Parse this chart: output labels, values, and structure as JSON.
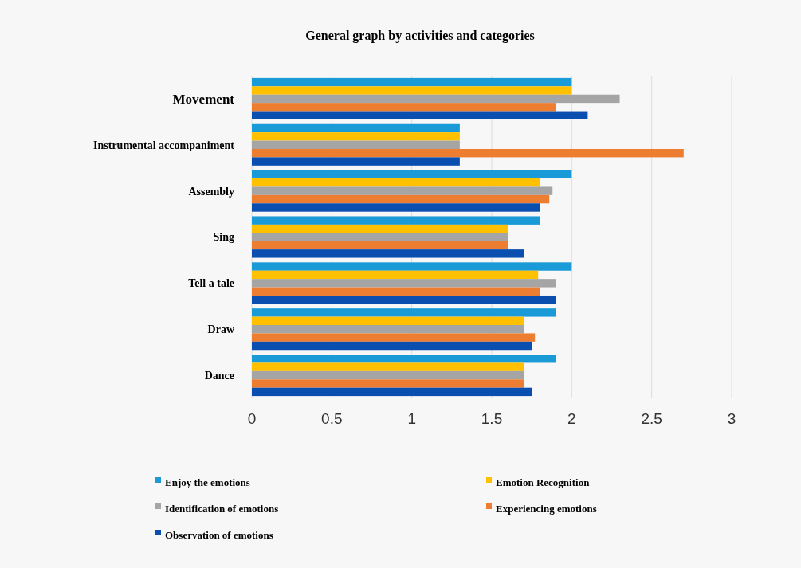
{
  "chart_data": {
    "type": "bar",
    "orientation": "horizontal",
    "title": "General graph by activities and categories",
    "categories": [
      "Movement",
      "Instrumental accompaniment",
      "Assembly",
      "Sing",
      "Tell a tale",
      "Draw",
      "Dance"
    ],
    "series": [
      {
        "name": "Enjoy the emotions",
        "color": "#1a9ad6",
        "values": [
          2.0,
          1.3,
          2.0,
          1.8,
          2.0,
          1.9,
          1.9
        ]
      },
      {
        "name": "Emotion Recognition",
        "color": "#ffc000",
        "values": [
          2.0,
          1.3,
          1.8,
          1.6,
          1.79,
          1.7,
          1.7
        ]
      },
      {
        "name": "Identification of emotions",
        "color": "#a5a5a5",
        "values": [
          2.3,
          1.3,
          1.88,
          1.6,
          1.9,
          1.7,
          1.7
        ]
      },
      {
        "name": "Experiencing emotions",
        "color": "#ed7d31",
        "values": [
          1.9,
          2.7,
          1.86,
          1.6,
          1.8,
          1.77,
          1.7
        ]
      },
      {
        "name": "Observation of emotions",
        "color": "#0a4fb0",
        "values": [
          2.1,
          1.3,
          1.8,
          1.7,
          1.9,
          1.75,
          1.75
        ]
      }
    ],
    "xlim": [
      0,
      3
    ],
    "xticks": [
      0,
      0.5,
      1,
      1.5,
      2,
      2.5,
      3
    ],
    "grid": "x",
    "legend": "bottom"
  }
}
